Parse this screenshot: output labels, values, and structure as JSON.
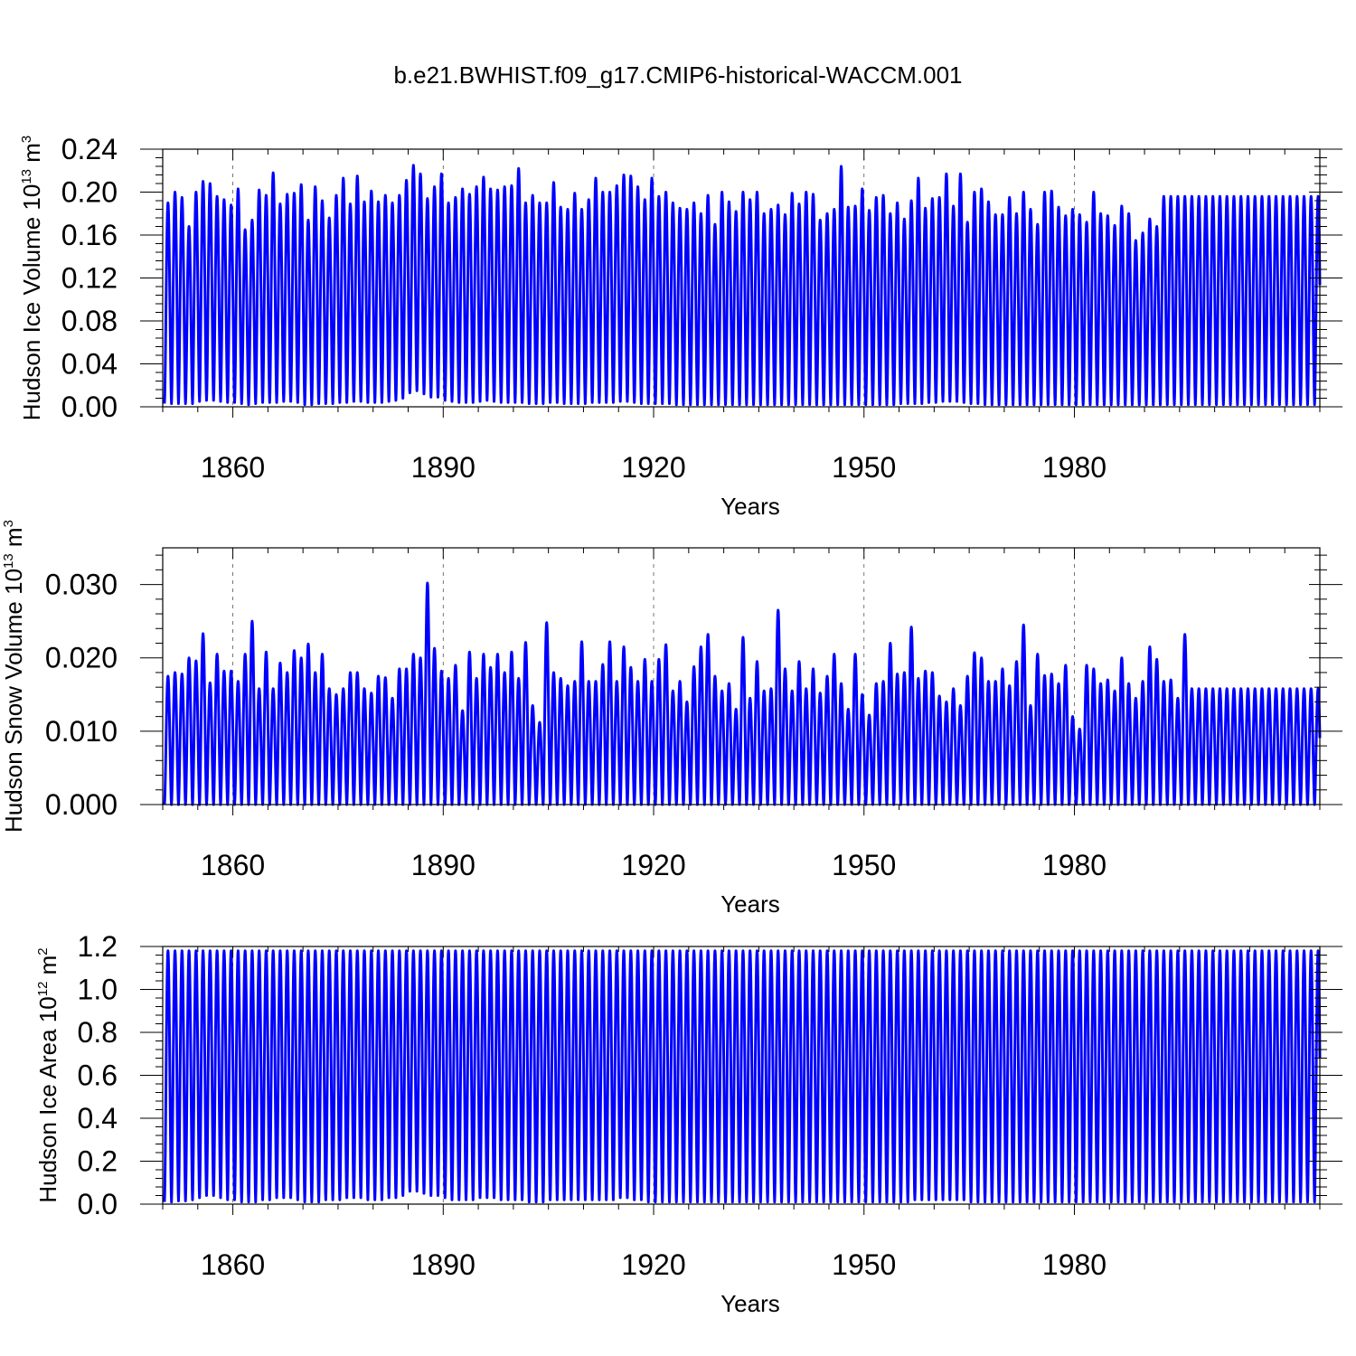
{
  "title": "b.e21.BWHIST.f09_g17.CMIP6-historical-WACCM.001",
  "line_color": "#0000ff",
  "chart_data": [
    {
      "type": "line",
      "ylabel": "Hudson Ice Volume 10",
      "ylabel_exp": "13",
      "ylabel_unit": " m",
      "ylabel_unit_exp": "3",
      "xlabel": "Years",
      "xlim": [
        1850,
        2015
      ],
      "ylim": [
        0,
        0.24
      ],
      "x_ticks": [
        "1860",
        "1890",
        "1920",
        "1950",
        "1980"
      ],
      "y_ticks": [
        "0.00",
        "0.04",
        "0.08",
        "0.12",
        "0.16",
        "0.20",
        "0.24"
      ],
      "grid": "vertical dashed at major x ticks",
      "series": [
        {
          "seasonal": true,
          "annual_max": [
            0.19,
            0.2,
            0.195,
            0.168,
            0.2,
            0.21,
            0.208,
            0.196,
            0.193,
            0.188,
            0.203,
            0.165,
            0.174,
            0.202,
            0.197,
            0.218,
            0.189,
            0.198,
            0.199,
            0.207,
            0.174,
            0.205,
            0.192,
            0.176,
            0.197,
            0.213,
            0.189,
            0.215,
            0.191,
            0.201,
            0.191,
            0.197,
            0.19,
            0.197,
            0.211,
            0.225,
            0.217,
            0.194,
            0.205,
            0.217,
            0.19,
            0.195,
            0.203,
            0.198,
            0.205,
            0.214,
            0.203,
            0.202,
            0.205,
            0.206,
            0.222,
            0.19,
            0.197,
            0.19,
            0.19,
            0.209,
            0.186,
            0.184,
            0.199,
            0.184,
            0.193,
            0.213,
            0.2,
            0.2,
            0.206,
            0.216,
            0.215,
            0.205,
            0.193,
            0.213,
            0.196,
            0.2,
            0.19,
            0.185,
            0.184,
            0.19,
            0.18,
            0.197,
            0.17,
            0.2,
            0.191,
            0.182,
            0.2,
            0.193,
            0.2,
            0.18,
            0.184,
            0.188,
            0.179,
            0.199,
            0.189,
            0.2,
            0.198,
            0.174,
            0.18,
            0.184,
            0.224,
            0.186,
            0.187,
            0.203,
            0.183,
            0.195,
            0.197,
            0.18,
            0.19,
            0.175,
            0.192,
            0.213,
            0.185,
            0.194,
            0.195,
            0.217,
            0.187,
            0.217,
            0.172,
            0.2,
            0.203,
            0.191,
            0.179,
            0.179,
            0.195,
            0.18,
            0.2,
            0.184,
            0.17,
            0.2,
            0.201,
            0.186,
            0.178,
            0.184,
            0.179,
            0.172,
            0.2,
            0.18,
            0.178,
            0.169,
            0.187,
            0.18,
            0.155,
            0.162,
            0.175,
            0.168,
            0.196
          ],
          "annual_min": [
            0.003,
            0.003,
            0.003,
            0.003,
            0.004,
            0.005,
            0.006,
            0.006,
            0.005,
            0.004,
            0.003,
            0.002,
            0.003,
            0.004,
            0.004,
            0.004,
            0.005,
            0.005,
            0.004,
            0.004,
            0.002,
            0.002,
            0.003,
            0.003,
            0.003,
            0.004,
            0.004,
            0.005,
            0.005,
            0.004,
            0.004,
            0.004,
            0.005,
            0.006,
            0.008,
            0.013,
            0.015,
            0.012,
            0.009,
            0.006,
            0.005,
            0.004,
            0.004,
            0.004,
            0.005,
            0.006,
            0.005,
            0.004,
            0.004,
            0.004,
            0.004,
            0.003,
            0.003,
            0.003,
            0.004,
            0.004,
            0.003,
            0.003,
            0.003,
            0.003,
            0.004,
            0.004,
            0.004,
            0.004,
            0.005,
            0.005,
            0.004,
            0.003,
            0.003,
            0.003,
            0.003,
            0.003,
            0.002,
            0.002,
            0.002,
            0.002,
            0.002,
            0.002,
            0.002,
            0.002,
            0.002,
            0.002,
            0.002,
            0.002,
            0.002,
            0.002,
            0.002,
            0.002,
            0.002,
            0.002,
            0.002,
            0.002,
            0.002,
            0.002,
            0.002,
            0.002,
            0.002,
            0.002,
            0.002,
            0.002,
            0.002,
            0.002,
            0.002,
            0.002,
            0.002,
            0.003,
            0.003,
            0.003,
            0.003,
            0.004,
            0.004,
            0.005,
            0.005,
            0.005,
            0.004,
            0.003,
            0.003,
            0.002,
            0.002,
            0.002,
            0.002,
            0.002,
            0.002,
            0.002,
            0.002,
            0.002,
            0.002,
            0.002,
            0.002,
            0.002,
            0.002,
            0.002,
            0.002,
            0.002,
            0.002,
            0.002,
            0.002,
            0.002,
            0.002,
            0.002,
            0.002,
            0.002,
            0.002,
            0.002,
            0.002
          ]
        }
      ]
    },
    {
      "type": "line",
      "ylabel": "Hudson Snow Volume 10",
      "ylabel_exp": "13",
      "ylabel_unit": " m",
      "ylabel_unit_exp": "3",
      "xlabel": "Years",
      "xlim": [
        1850,
        2015
      ],
      "ylim": [
        0,
        0.035
      ],
      "x_ticks": [
        "1860",
        "1890",
        "1920",
        "1950",
        "1980"
      ],
      "y_ticks": [
        "0.000",
        "0.010",
        "0.020",
        "0.030"
      ],
      "grid": "vertical dashed at major x ticks",
      "series": [
        {
          "seasonal": true,
          "annual_max": [
            0.0175,
            0.018,
            0.0178,
            0.02,
            0.0196,
            0.0233,
            0.0166,
            0.0205,
            0.0182,
            0.0182,
            0.0168,
            0.0205,
            0.025,
            0.0158,
            0.0208,
            0.0158,
            0.0193,
            0.018,
            0.021,
            0.02,
            0.0219,
            0.018,
            0.0205,
            0.0158,
            0.015,
            0.0158,
            0.018,
            0.018,
            0.0158,
            0.0152,
            0.0175,
            0.0173,
            0.0145,
            0.0185,
            0.0185,
            0.0205,
            0.02,
            0.0302,
            0.0213,
            0.0182,
            0.0172,
            0.019,
            0.0128,
            0.0208,
            0.0172,
            0.0205,
            0.0187,
            0.0205,
            0.018,
            0.0208,
            0.0172,
            0.0221,
            0.0135,
            0.0112,
            0.0248,
            0.018,
            0.0172,
            0.0162,
            0.0168,
            0.0222,
            0.0168,
            0.0168,
            0.0191,
            0.0222,
            0.0168,
            0.0215,
            0.0187,
            0.0168,
            0.0198,
            0.0168,
            0.0198,
            0.0218,
            0.0155,
            0.0168,
            0.014,
            0.0188,
            0.0215,
            0.0232,
            0.0175,
            0.0155,
            0.0165,
            0.013,
            0.0228,
            0.0145,
            0.0195,
            0.0155,
            0.0158,
            0.0265,
            0.0185,
            0.0155,
            0.0195,
            0.0158,
            0.0185,
            0.0152,
            0.0175,
            0.0205,
            0.0165,
            0.013,
            0.0205,
            0.015,
            0.0122,
            0.0165,
            0.0168,
            0.022,
            0.0178,
            0.018,
            0.0242,
            0.0172,
            0.0182,
            0.018,
            0.0148,
            0.014,
            0.0158,
            0.0135,
            0.0175,
            0.0207,
            0.02,
            0.0168,
            0.0168,
            0.0185,
            0.0162,
            0.0195,
            0.0245,
            0.0135,
            0.0205,
            0.0176,
            0.0178,
            0.0165,
            0.019,
            0.012,
            0.0103,
            0.019,
            0.0185,
            0.0165,
            0.017,
            0.0155,
            0.02,
            0.0165,
            0.0145,
            0.0168,
            0.0215,
            0.0198,
            0.0168,
            0.017,
            0.0145,
            0.0232,
            0.0158
          ],
          "annual_min": [
            0
          ]
        }
      ]
    },
    {
      "type": "line",
      "ylabel": "Hudson Ice Area 10",
      "ylabel_exp": "12",
      "ylabel_unit": " m",
      "ylabel_unit_exp": "2",
      "xlabel": "Years",
      "xlim": [
        1850,
        2015
      ],
      "ylim": [
        0,
        1.2
      ],
      "x_ticks": [
        "1860",
        "1890",
        "1920",
        "1950",
        "1980"
      ],
      "y_ticks": [
        "0.0",
        "0.2",
        "0.4",
        "0.6",
        "0.8",
        "1.0",
        "1.2"
      ],
      "grid": "vertical dashed at major x ticks",
      "series": [
        {
          "seasonal": true,
          "annual_max": [
            1.18
          ],
          "annual_min": [
            0.01,
            0.01,
            0.015,
            0.02,
            0.02,
            0.03,
            0.04,
            0.04,
            0.03,
            0.02,
            0.01,
            0.01,
            0.01,
            0.02,
            0.02,
            0.03,
            0.03,
            0.03,
            0.02,
            0.02,
            0.01,
            0.01,
            0.01,
            0.02,
            0.02,
            0.02,
            0.03,
            0.03,
            0.03,
            0.02,
            0.02,
            0.02,
            0.03,
            0.03,
            0.04,
            0.06,
            0.06,
            0.05,
            0.04,
            0.03,
            0.02,
            0.02,
            0.02,
            0.02,
            0.03,
            0.03,
            0.03,
            0.02,
            0.02,
            0.02,
            0.02,
            0.01,
            0.01,
            0.01,
            0.02,
            0.02,
            0.02,
            0.02,
            0.02,
            0.02,
            0.02,
            0.02,
            0.02,
            0.02,
            0.03,
            0.03,
            0.02,
            0.02,
            0.01,
            0.01,
            0.01,
            0.01,
            0.01,
            0.01,
            0.01,
            0.01,
            0.01,
            0.01,
            0.01,
            0.01,
            0.01,
            0.01,
            0.01,
            0.01,
            0.01,
            0.01,
            0.01,
            0.01,
            0.01,
            0.01,
            0.01,
            0.01,
            0.01,
            0.01,
            0.01,
            0.01,
            0.01,
            0.01,
            0.01,
            0.01,
            0.01,
            0.01,
            0.01,
            0.01,
            0.01,
            0.01,
            0.01,
            0.02,
            0.02,
            0.02,
            0.02,
            0.02,
            0.02,
            0.02,
            0.02,
            0.01,
            0.01,
            0.01,
            0.01,
            0.01,
            0.01,
            0.01,
            0.01,
            0.01,
            0.01,
            0.01,
            0.01,
            0.01,
            0.01,
            0.01,
            0.01,
            0.01,
            0.01,
            0.01,
            0.01,
            0.01,
            0.01,
            0.01,
            0.01,
            0.01,
            0.01,
            0.01,
            0.01,
            0.01,
            0.01,
            0.01,
            0.01
          ]
        }
      ]
    }
  ]
}
